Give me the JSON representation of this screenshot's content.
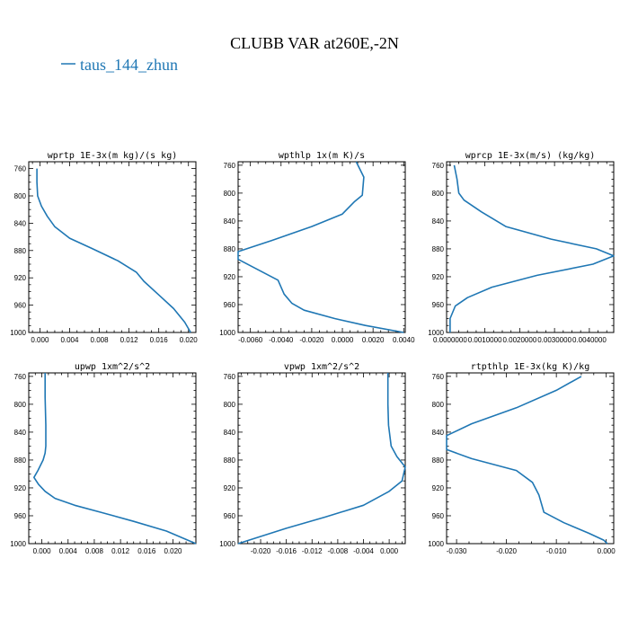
{
  "title": "CLUBB VAR at260E,-2N",
  "legend": {
    "label": "taus_144_zhun",
    "color": "#1f77b4"
  },
  "chart_data": [
    {
      "type": "line",
      "title": "wprtp  1E-3x(m kg)/(s kg)",
      "xlim": [
        -0.0015,
        0.021
      ],
      "ylim": [
        1000,
        750
      ],
      "xticks": [
        0.0,
        0.004,
        0.008,
        0.012,
        0.016,
        0.02
      ],
      "xticklabels": [
        "0.000",
        "0.004",
        "0.008",
        "0.012",
        "0.016",
        "0.020"
      ],
      "yticks": [
        760,
        800,
        840,
        880,
        920,
        960,
        1000
      ],
      "yticklabels": [
        "760",
        "800",
        "840",
        "880",
        "920",
        "960",
        "1000"
      ],
      "series": [
        {
          "x": [
            -0.0004,
            -0.0004,
            -0.0003,
            0.0002,
            0.001,
            0.002,
            0.004,
            0.007,
            0.0105,
            0.013,
            0.014,
            0.016,
            0.018,
            0.0195,
            0.0203
          ],
          "y": [
            760,
            780,
            800,
            815,
            830,
            845,
            862,
            877,
            895,
            912,
            925,
            945,
            965,
            985,
            1000
          ]
        }
      ]
    },
    {
      "type": "line",
      "title": "wpthlp  1x(m K)/s",
      "xlim": [
        -0.0068,
        0.0041
      ],
      "ylim": [
        1000,
        755
      ],
      "xticks": [
        -0.006,
        -0.004,
        -0.002,
        0.0,
        0.002,
        0.004
      ],
      "xticklabels": [
        "-0.0060",
        "-0.0040",
        "-0.0020",
        "0.0000",
        "0.0020",
        "0.0040"
      ],
      "yticks": [
        760,
        800,
        840,
        880,
        920,
        960,
        1000
      ],
      "yticklabels": [
        "760",
        "800",
        "840",
        "880",
        "920",
        "960",
        "1000"
      ],
      "series": [
        {
          "x": [
            0.0009,
            0.0014,
            0.0013,
            0.0008,
            0.0,
            -0.002,
            -0.0046,
            -0.0068,
            -0.0068,
            -0.0055,
            -0.0042,
            -0.0038,
            -0.0033,
            -0.0025,
            -0.0005,
            0.0015,
            0.004
          ],
          "y": [
            755,
            777,
            803,
            812,
            830,
            848,
            868,
            884,
            895,
            910,
            925,
            945,
            958,
            968,
            980,
            990,
            1000
          ]
        }
      ]
    },
    {
      "type": "line",
      "title": "wprcp  1E-3x(m/s) (kg/kg)",
      "xlim": [
        -0.0001,
        0.0047
      ],
      "ylim": [
        1000,
        755
      ],
      "xticks": [
        0.0,
        0.001,
        0.002,
        0.003,
        0.004
      ],
      "xticklabels": [
        "0.0000000",
        "0.0010000",
        "0.0020000",
        "0.0030000",
        "0.0040000"
      ],
      "yticks": [
        760,
        800,
        840,
        880,
        920,
        960,
        1000
      ],
      "yticklabels": [
        "760",
        "800",
        "840",
        "880",
        "920",
        "960",
        "1000"
      ],
      "series": [
        {
          "x": [
            0.00012,
            0.0002,
            0.00025,
            0.0004,
            0.0009,
            0.0016,
            0.0029,
            0.0042,
            0.0047,
            0.0041,
            0.0025,
            0.0012,
            0.0005,
            0.00015,
            0.0,
            0.0
          ],
          "y": [
            760,
            780,
            800,
            810,
            827,
            848,
            866,
            880,
            890,
            902,
            918,
            935,
            950,
            962,
            980,
            1000
          ]
        }
      ]
    },
    {
      "type": "line",
      "title": "upwp  1xm^2/s^2",
      "xlim": [
        -0.002,
        0.0235
      ],
      "ylim": [
        1000,
        755
      ],
      "xticks": [
        0.0,
        0.004,
        0.008,
        0.012,
        0.016,
        0.02
      ],
      "xticklabels": [
        "0.000",
        "0.004",
        "0.008",
        "0.012",
        "0.016",
        "0.020"
      ],
      "yticks": [
        760,
        800,
        840,
        880,
        920,
        960,
        1000
      ],
      "yticklabels": [
        "760",
        "800",
        "840",
        "880",
        "920",
        "960",
        "1000"
      ],
      "series": [
        {
          "x": [
            0.0005,
            0.0005,
            0.0006,
            0.0006,
            0.0005,
            0.0002,
            -0.0006,
            -0.0012,
            -0.0005,
            0.0005,
            0.002,
            0.005,
            0.009,
            0.014,
            0.019,
            0.0235
          ],
          "y": [
            755,
            790,
            830,
            860,
            870,
            880,
            895,
            905,
            915,
            925,
            935,
            945,
            955,
            968,
            982,
            1000
          ]
        }
      ]
    },
    {
      "type": "line",
      "title": "vpwp  1xm^2/s^2",
      "xlim": [
        -0.0235,
        0.0025
      ],
      "ylim": [
        1000,
        755
      ],
      "xticks": [
        -0.02,
        -0.016,
        -0.012,
        -0.008,
        -0.004,
        0.0
      ],
      "xticklabels": [
        "-0.020",
        "-0.016",
        "-0.012",
        "-0.008",
        "-0.004",
        "0.000"
      ],
      "yticks": [
        760,
        800,
        840,
        880,
        920,
        960,
        1000
      ],
      "yticklabels": [
        "760",
        "800",
        "840",
        "880",
        "920",
        "960",
        "1000"
      ],
      "series": [
        {
          "x": [
            -0.0002,
            -0.0002,
            -0.0001,
            0.0003,
            0.0012,
            0.0025,
            0.002,
            0.0,
            -0.004,
            -0.01,
            -0.016,
            -0.0235
          ],
          "y": [
            755,
            800,
            830,
            860,
            875,
            890,
            910,
            925,
            945,
            962,
            978,
            1000
          ]
        }
      ]
    },
    {
      "type": "line",
      "title": "rtpthlp  1E-3x(kg K)/kg",
      "xlim": [
        -0.032,
        0.0015
      ],
      "ylim": [
        1000,
        755
      ],
      "xticks": [
        -0.03,
        -0.02,
        -0.01,
        0.0
      ],
      "xticklabels": [
        "-0.030",
        "-0.020",
        "-0.010",
        "0.000"
      ],
      "yticks": [
        760,
        800,
        840,
        880,
        920,
        960,
        1000
      ],
      "yticklabels": [
        "760",
        "800",
        "840",
        "880",
        "920",
        "960",
        "1000"
      ],
      "series": [
        {
          "x": [
            -0.005,
            -0.01,
            -0.018,
            -0.027,
            -0.032,
            -0.032,
            -0.027,
            -0.018,
            -0.0148,
            -0.0135,
            -0.0125,
            -0.0085,
            -0.0035,
            -0.0005,
            0.0002
          ],
          "y": [
            760,
            780,
            805,
            828,
            845,
            865,
            878,
            895,
            912,
            930,
            955,
            970,
            985,
            995,
            1000
          ]
        }
      ]
    }
  ]
}
